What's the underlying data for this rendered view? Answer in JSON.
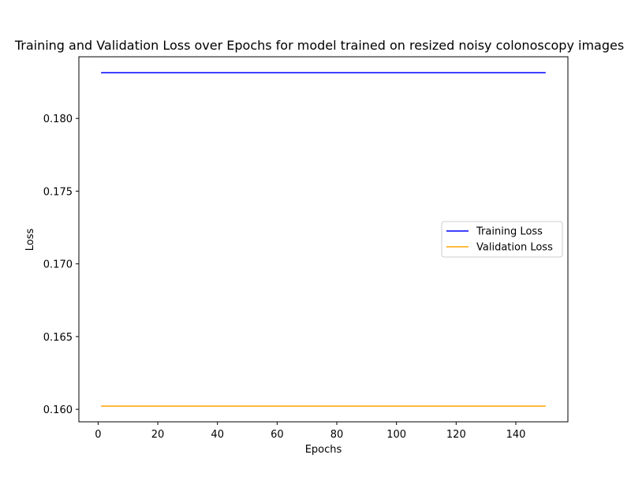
{
  "chart_data": {
    "type": "line",
    "title": "Training and Validation Loss over Epochs for model trained on resized noisy colonoscopy images",
    "xlabel": "Epochs",
    "ylabel": "Loss",
    "xlim": [
      -6.45,
      157.45
    ],
    "ylim": [
      0.15914,
      0.18424
    ],
    "xticks": [
      0,
      20,
      40,
      60,
      80,
      100,
      120,
      140
    ],
    "xtick_labels": [
      "0",
      "20",
      "40",
      "60",
      "80",
      "100",
      "120",
      "140"
    ],
    "yticks": [
      0.16,
      0.165,
      0.17,
      0.175,
      0.18
    ],
    "ytick_labels": [
      "0.160",
      "0.165",
      "0.170",
      "0.175",
      "0.180"
    ],
    "grid": false,
    "legend_position": "center-right",
    "series": [
      {
        "name": "Training Loss",
        "color": "#0000ff",
        "x": [
          1,
          150
        ],
        "y": [
          0.18314,
          0.18314
        ]
      },
      {
        "name": "Validation Loss",
        "color": "#ffa500",
        "x": [
          1,
          150
        ],
        "y": [
          0.16022,
          0.16022
        ]
      }
    ]
  }
}
